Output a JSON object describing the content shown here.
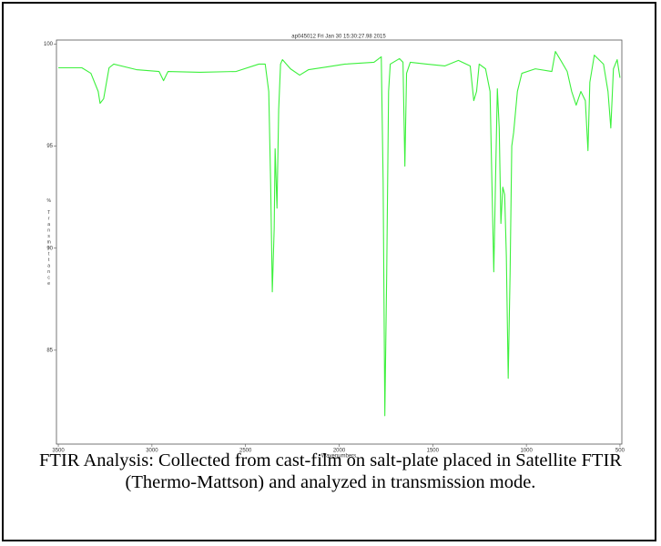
{
  "chart_data": {
    "type": "line",
    "title": "ap045012  Fri Jan 30 15:30:27.98 2015",
    "x_label": "Wavenumbers",
    "y_label": "% Transmittance",
    "x": [
      3500,
      3374,
      3326,
      3287,
      3277,
      3258,
      3229,
      3204,
      3083,
      2962,
      2938,
      2914,
      2744,
      2550,
      2429,
      2395,
      2376,
      2366,
      2357,
      2347,
      2342,
      2332,
      2323,
      2313,
      2303,
      2260,
      2211,
      2163,
      2066,
      1969,
      1814,
      1775,
      1765,
      1756,
      1746,
      1736,
      1727,
      1678,
      1659,
      1649,
      1640,
      1620,
      1533,
      1436,
      1363,
      1300,
      1281,
      1266,
      1252,
      1218,
      1194,
      1184,
      1174,
      1165,
      1155,
      1145,
      1136,
      1126,
      1116,
      1107,
      1097,
      1087,
      1078,
      1068,
      1048,
      1024,
      952,
      864,
      845,
      816,
      782,
      758,
      734,
      709,
      685,
      671,
      661,
      637,
      588,
      564,
      549,
      535,
      515,
      500
    ],
    "series": [
      {
        "name": "Transmittance",
        "color": "#3cf03c",
        "values": [
          98.84,
          98.84,
          98.57,
          97.68,
          97.1,
          97.32,
          98.84,
          99.02,
          98.75,
          98.66,
          98.21,
          98.66,
          98.62,
          98.66,
          99.02,
          99.02,
          97.68,
          93.21,
          87.86,
          90.98,
          94.87,
          91.96,
          96.79,
          99.02,
          99.24,
          98.79,
          98.48,
          98.75,
          98.88,
          99.02,
          99.11,
          99.38,
          93.21,
          81.79,
          88.75,
          97.68,
          99.02,
          99.29,
          99.11,
          94.02,
          98.57,
          99.11,
          99.02,
          98.93,
          99.2,
          98.93,
          97.23,
          97.68,
          99.02,
          98.79,
          97.68,
          93.21,
          88.84,
          93.21,
          97.81,
          95.89,
          91.21,
          92.99,
          92.63,
          89.64,
          83.62,
          88.75,
          95.0,
          95.67,
          97.68,
          98.57,
          98.79,
          98.66,
          99.64,
          99.2,
          98.66,
          97.68,
          97.01,
          97.68,
          97.23,
          94.78,
          98.13,
          99.46,
          99.02,
          97.68,
          95.89,
          98.79,
          99.24,
          98.35
        ]
      }
    ],
    "xlim": [
      3510,
      490
    ],
    "ylim": [
      80.4,
      100.2
    ],
    "xticks": [
      3500,
      3000,
      2500,
      2000,
      1500,
      1000,
      500
    ],
    "yticks": [
      85,
      90,
      95,
      100
    ]
  },
  "caption": "FTIR Analysis: Collected from cast-film on salt-plate placed in Satellite FTIR (Thermo-Mattson) and analyzed in transmission mode."
}
